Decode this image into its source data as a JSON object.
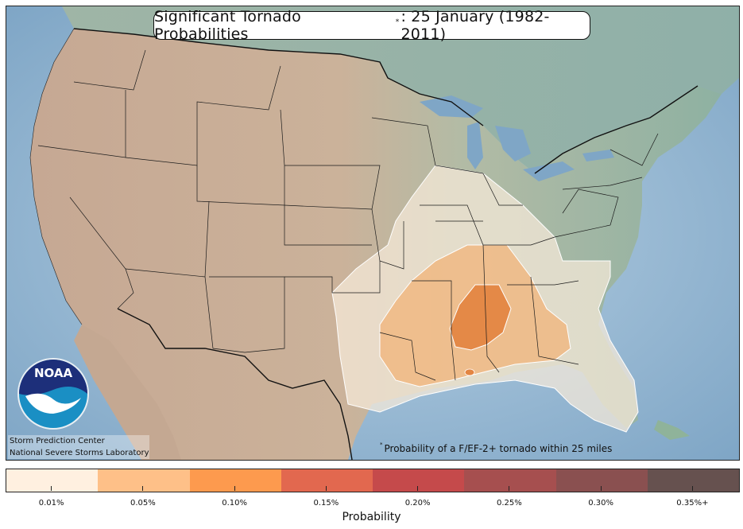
{
  "title": {
    "prefix": "Significant Tornado Probabilities",
    "marker": "*",
    "suffix": ": 25 January (1982-2011)"
  },
  "credits": {
    "line1": "Storm Prediction Center",
    "line2": "National Severe Storms Laboratory"
  },
  "logo": {
    "text": "NOAA",
    "icon": "noaa-logo-icon"
  },
  "footnote": {
    "marker": "*",
    "text": "Probability of a F/EF-2+ tornado within 25 miles"
  },
  "colorbar": {
    "title": "Probability",
    "bins": [
      {
        "label": "0.01%",
        "color": "#fff0e0"
      },
      {
        "label": "0.05%",
        "color": "#fec088"
      },
      {
        "label": "0.10%",
        "color": "#fd9a4e"
      },
      {
        "label": "0.15%",
        "color": "#e2684f"
      },
      {
        "label": "0.20%",
        "color": "#c54a4b"
      },
      {
        "label": "0.25%",
        "color": "#a64f4f"
      },
      {
        "label": "0.30%",
        "color": "#8a5050"
      },
      {
        "label": "0.35%+",
        "color": "#66514f"
      }
    ]
  },
  "colors": {
    "ocean": "#8fb3cf",
    "land_west": "#c9ab93",
    "land_east": "#97b5a8",
    "contour_outline": "#ffffff"
  }
}
